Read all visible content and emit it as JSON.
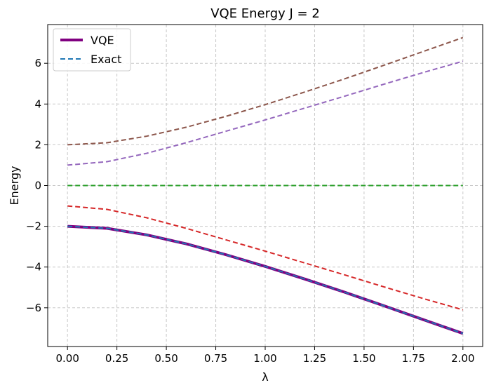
{
  "chart_data": {
    "type": "line",
    "title": "VQE Energy J = 2",
    "xlabel": "λ",
    "ylabel": "Energy",
    "xlim": [
      -0.1,
      2.1
    ],
    "ylim": [
      -7.9,
      7.9
    ],
    "xticks": [
      0.0,
      0.25,
      0.5,
      0.75,
      1.0,
      1.25,
      1.5,
      1.75,
      2.0
    ],
    "xtick_labels": [
      "0.00",
      "0.25",
      "0.50",
      "0.75",
      "1.00",
      "1.25",
      "1.50",
      "1.75",
      "2.00"
    ],
    "yticks": [
      -6,
      -4,
      -2,
      0,
      2,
      4,
      6
    ],
    "ytick_labels": [
      "−6",
      "−4",
      "−2",
      "0",
      "2",
      "4",
      "6"
    ],
    "grid": true,
    "legend_position": "top-left",
    "legend": [
      {
        "label": "VQE",
        "style": "solid",
        "color": "#800080"
      },
      {
        "label": "Exact",
        "style": "dashed",
        "color": "#1f77b4"
      }
    ],
    "x": [
      0.0,
      0.2,
      0.4,
      0.6,
      0.8,
      1.0,
      1.2,
      1.4,
      1.6,
      1.8,
      2.0
    ],
    "series": [
      {
        "name": "VQE",
        "style": "solid",
        "color": "#800080",
        "width": 4,
        "values": [
          -2.0,
          -2.1,
          -2.42,
          -2.86,
          -3.39,
          -3.97,
          -4.59,
          -5.23,
          -5.9,
          -6.58,
          -7.26
        ]
      },
      {
        "style": "dashed",
        "color": "#1f77b4",
        "width": 2,
        "values": [
          -2.0,
          -2.1,
          -2.42,
          -2.86,
          -3.39,
          -3.97,
          -4.59,
          -5.23,
          -5.9,
          -6.58,
          -7.26
        ]
      },
      {
        "style": "dashed",
        "color": "#d62728",
        "width": 2,
        "values": [
          -1.0,
          -1.17,
          -1.58,
          -2.1,
          -2.66,
          -3.22,
          -3.8,
          -4.38,
          -4.97,
          -5.55,
          -6.1
        ]
      },
      {
        "style": "dashed",
        "color": "#2ca02c",
        "width": 2,
        "values": [
          0,
          0,
          0,
          0,
          0,
          0,
          0,
          0,
          0,
          0,
          0
        ]
      },
      {
        "style": "dashed",
        "color": "#9467bd",
        "width": 2,
        "values": [
          1.0,
          1.17,
          1.58,
          2.1,
          2.66,
          3.22,
          3.8,
          4.38,
          4.97,
          5.55,
          6.1
        ]
      },
      {
        "style": "dashed",
        "color": "#8c564b",
        "width": 2,
        "values": [
          2.0,
          2.1,
          2.42,
          2.86,
          3.39,
          3.97,
          4.59,
          5.23,
          5.9,
          6.58,
          7.26
        ]
      }
    ]
  }
}
